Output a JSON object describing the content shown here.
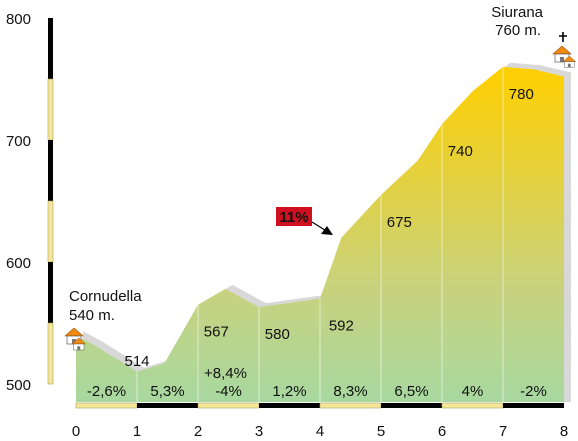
{
  "chart_data": {
    "type": "area",
    "x": [
      0,
      0.3,
      1.0,
      1.45,
      2.0,
      2.45,
      3.0,
      4.0,
      4.35,
      5.0,
      5.6,
      6.0,
      6.5,
      7.0,
      7.5,
      8.0
    ],
    "y": [
      540,
      532,
      510,
      517,
      565,
      578,
      563,
      570,
      620,
      655,
      683,
      713,
      740,
      760,
      758,
      752
    ],
    "xlim": [
      0,
      8
    ],
    "ylim": [
      500,
      800
    ],
    "xticks": [
      "0",
      "1",
      "2",
      "3",
      "4",
      "5",
      "6",
      "7",
      "8"
    ],
    "yticks": [
      "500",
      "600",
      "700",
      "800"
    ],
    "value_labels": [
      {
        "x": 1.0,
        "y": 510,
        "text": "514"
      },
      {
        "x": 2.3,
        "y": 565,
        "text": "567"
      },
      {
        "x": 3.3,
        "y": 563,
        "text": "580"
      },
      {
        "x": 4.35,
        "y": 570,
        "text": "592"
      },
      {
        "x": 5.3,
        "y": 655,
        "text": "675"
      },
      {
        "x": 6.3,
        "y": 713,
        "text": "740"
      },
      {
        "x": 7.3,
        "y": 760,
        "text": "780"
      }
    ],
    "segment_grades": [
      "-2,6%",
      "5,3%",
      "-4%",
      "1,2%",
      "8,3%",
      "6,5%",
      "4%",
      "-2%"
    ],
    "extra_grade": "+8,4%",
    "max_grade": "11%",
    "start": {
      "name": "Cornudella",
      "alt": "540 m."
    },
    "end": {
      "name": "Siurana",
      "alt": "760 m."
    },
    "colors": {
      "fill_bottom": "#a8d8a0",
      "fill_top": "#ffd200",
      "shadow": "#d8d8d8",
      "axis_dark": "#000000",
      "axis_light": "#f4e79a",
      "grade_badge": "#d01020",
      "house_roof": "#f08a10"
    }
  }
}
